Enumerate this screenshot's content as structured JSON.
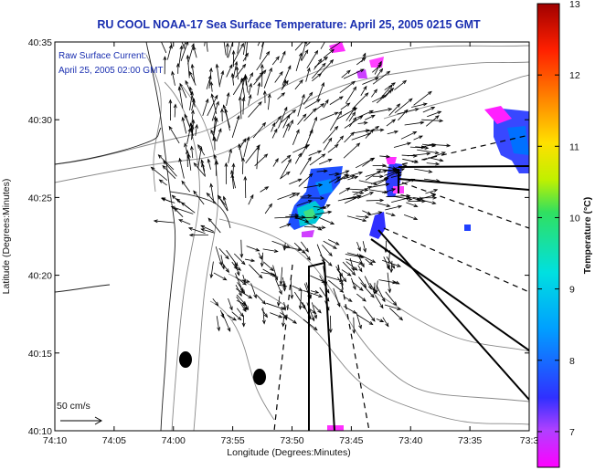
{
  "title": "RU COOL  NOAA-17 Sea Surface Temperature:  April 25, 2005 0215 GMT",
  "inset": {
    "line1": "Raw Surface Current:",
    "line2": "April 25, 2005 02:00 GMT"
  },
  "axes": {
    "xlabel": "Longitude (Degrees:Minutes)",
    "ylabel": "Latitude (Degrees:Minutes)",
    "x_ticks": [
      "74:10",
      "74:05",
      "74:00",
      "73:55",
      "73:50",
      "73:45",
      "73:40",
      "73:35",
      "73:3"
    ],
    "y_ticks": [
      "40:35",
      "40:30",
      "40:25",
      "40:20",
      "40:15",
      "40:10"
    ]
  },
  "scale": {
    "label": "50 cm/s"
  },
  "colorbar": {
    "label": "Temperature (°C)",
    "ticks": [
      "13",
      "12",
      "11",
      "10",
      "9",
      "8",
      "7"
    ],
    "min": 6.5,
    "max": 13
  },
  "colors": {
    "title": "#1a2fb0",
    "land_contour": "#888888",
    "vectors": "#000000"
  }
}
